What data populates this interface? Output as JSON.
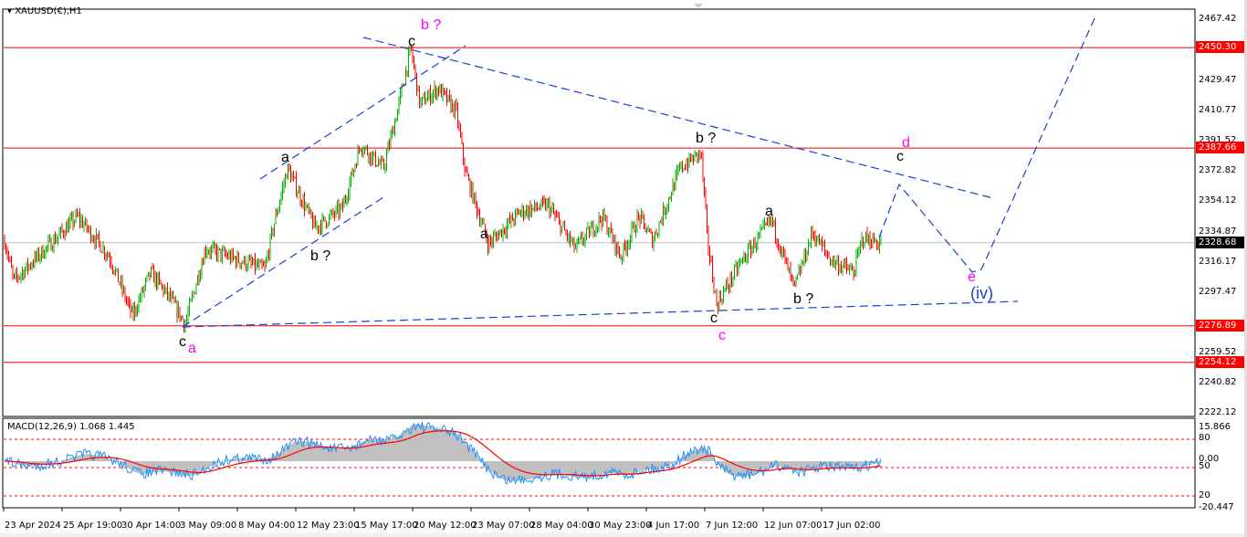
{
  "title": "XAUUSD(€),H1",
  "macd_label": "MACD(12,26,9) 1.068 1.445",
  "price_axis": [
    "2467.42",
    "2448.17",
    "2429.47",
    "2410.77",
    "2391.52",
    "2372.82",
    "2354.12",
    "2334.87",
    "2316.17",
    "2297.47",
    "2259.52",
    "2240.82",
    "2222.12"
  ],
  "price_tags": [
    {
      "value": "2450.30",
      "color": "#ff0000"
    },
    {
      "value": "2387.66",
      "color": "#ff0000"
    },
    {
      "value": "2276.89",
      "color": "#ff0000"
    },
    {
      "value": "2254.12",
      "color": "#ff0000"
    },
    {
      "value": "2328.68",
      "color": "#000000"
    }
  ],
  "macd_axis": [
    "15.866",
    "80",
    "0.00",
    "50",
    "20",
    "-20.447"
  ],
  "time_axis": [
    "23 Apr 2024",
    "25 Apr 19:00",
    "30 Apr 14:00",
    "3 May 09:00",
    "8 May 04:00",
    "12 May 23:00",
    "15 May 17:00",
    "20 May 12:00",
    "23 May 07:00",
    "28 May 04:00",
    "30 May 23:00",
    "4 Jun 17:00",
    "7 Jun 12:00",
    "12 Jun 07:00",
    "17 Jun 02:00"
  ],
  "wave_labels": {
    "c1": "c",
    "a1": "a",
    "b1": "b ?",
    "a2": "a",
    "bq": "b ?",
    "c2": "c",
    "a3": "a",
    "bq2": "b ?",
    "c3": "c",
    "a4": "a",
    "bq3": "b ?",
    "c4": "c",
    "cm": "c",
    "d": "d",
    "e": "e",
    "iv": "(iv)"
  },
  "colors": {
    "bull": "#00b000",
    "bear": "#ff0000",
    "level": "#ff0000",
    "trend": "#1a3fd6",
    "macd": "#1e90ff",
    "signal": "#ff0000",
    "hist": "#c0c0c0"
  }
}
